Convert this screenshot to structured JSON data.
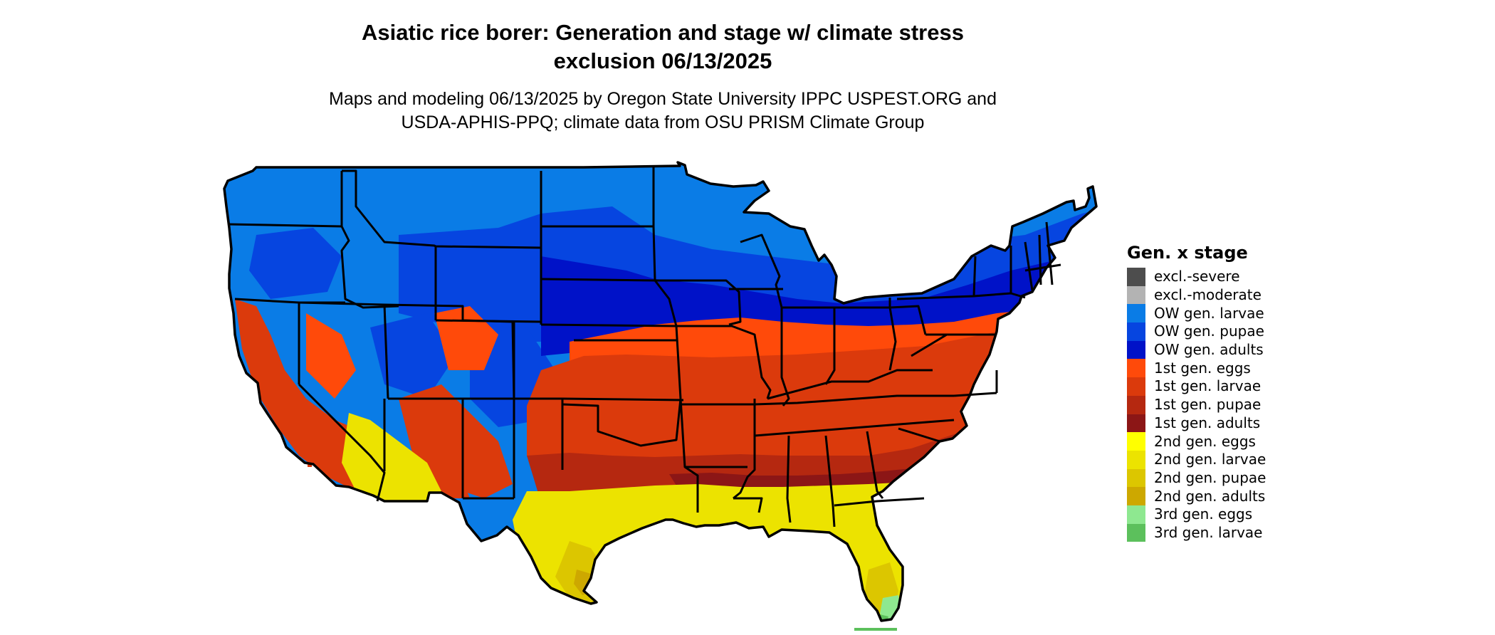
{
  "title_line1": "Asiatic rice borer: Generation and stage w/ climate stress",
  "title_line2": "exclusion 06/13/2025",
  "subtitle_line1": "Maps and modeling 06/13/2025 by Oregon State University IPPC USPEST.ORG and",
  "subtitle_line2": "USDA-APHIS-PPQ; climate data from OSU PRISM Climate Group",
  "legend": {
    "title": "Gen. x stage",
    "items": [
      {
        "label": "excl.-severe",
        "color": "#4d4d4d"
      },
      {
        "label": "excl.-moderate",
        "color": "#b3b3b3"
      },
      {
        "label": "OW gen. larvae",
        "color": "#0a7ce6"
      },
      {
        "label": "OW gen. pupae",
        "color": "#0645e0"
      },
      {
        "label": "OW gen. adults",
        "color": "#0012c8"
      },
      {
        "label": "1st gen. eggs",
        "color": "#ff4a0a"
      },
      {
        "label": "1st gen. larvae",
        "color": "#db3a0c"
      },
      {
        "label": "1st gen. pupae",
        "color": "#b52810"
      },
      {
        "label": "1st gen. adults",
        "color": "#8c1616"
      },
      {
        "label": "2nd gen. eggs",
        "color": "#ffff00"
      },
      {
        "label": "2nd gen. larvae",
        "color": "#ece300"
      },
      {
        "label": "2nd gen. pupae",
        "color": "#dcc600"
      },
      {
        "label": "2nd gen. adults",
        "color": "#cda800"
      },
      {
        "label": "3rd gen. eggs",
        "color": "#8ee890"
      },
      {
        "label": "3rd gen. larvae",
        "color": "#5cc05c"
      }
    ]
  }
}
